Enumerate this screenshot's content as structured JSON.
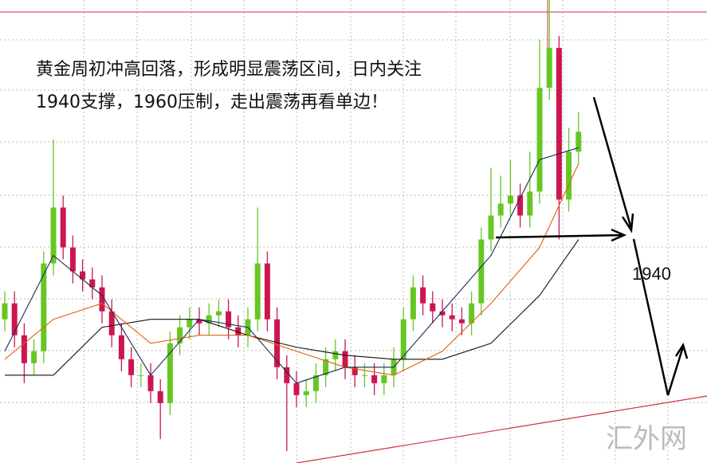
{
  "chart_data": {
    "type": "candlestick",
    "annotation_lines": [
      "黄金周初冲高回落，形成明显震荡区间，日内关注",
      "1940支撑，1960压制，走出震荡再看单边！"
    ],
    "level_label": "1940",
    "watermark": "汇外网",
    "ylim": [
      1884,
      2000
    ],
    "hline": 1997,
    "up_color": "#66c724",
    "down_color": "#cc1650",
    "open": [
      1920,
      1924,
      1916,
      1909,
      1912,
      1934,
      1948,
      1938,
      1932,
      1930,
      1928,
      1922,
      1916,
      1910,
      1906,
      1906,
      1902,
      1899,
      1914,
      1918,
      1920,
      1919,
      1921,
      1922,
      1918,
      1916,
      1920,
      1934,
      1920,
      1908,
      1904,
      1901,
      1902,
      1906,
      1910,
      1912,
      1908,
      1906,
      1906,
      1904,
      1906,
      1910,
      1920,
      1928,
      1924,
      1922,
      1921,
      1920,
      1919,
      1924,
      1940,
      1946,
      1949,
      1951,
      1946,
      1952,
      1978,
      1988,
      1950,
      1962
    ],
    "high": [
      1927,
      1927,
      1919,
      1915,
      1937,
      1965,
      1951,
      1941,
      1935,
      1933,
      1931,
      1925,
      1919,
      1913,
      1909,
      1909,
      1905,
      1917,
      1921,
      1923,
      1923,
      1924,
      1925,
      1925,
      1921,
      1923,
      1948,
      1937,
      1923,
      1911,
      1907,
      1905,
      1909,
      1913,
      1915,
      1915,
      1911,
      1909,
      1909,
      1909,
      1913,
      1923,
      1931,
      1931,
      1927,
      1925,
      1924,
      1923,
      1927,
      1943,
      1958,
      1956,
      1960,
      1954,
      1962,
      1990,
      2000,
      1991,
      1968,
      1972
    ],
    "low": [
      1917,
      1913,
      1904,
      1906,
      1909,
      1931,
      1935,
      1929,
      1927,
      1925,
      1919,
      1913,
      1907,
      1903,
      1903,
      1899,
      1890,
      1896,
      1911,
      1915,
      1916,
      1916,
      1918,
      1915,
      1913,
      1913,
      1917,
      1917,
      1905,
      1887,
      1898,
      1898,
      1899,
      1903,
      1907,
      1905,
      1903,
      1903,
      1901,
      1901,
      1903,
      1907,
      1917,
      1921,
      1919,
      1918,
      1917,
      1916,
      1916,
      1921,
      1937,
      1943,
      1946,
      1943,
      1943,
      1949,
      1975,
      1940,
      1947,
      1959
    ],
    "close": [
      1924,
      1916,
      1909,
      1912,
      1934,
      1948,
      1938,
      1932,
      1930,
      1928,
      1922,
      1916,
      1910,
      1906,
      1906,
      1902,
      1899,
      1914,
      1918,
      1920,
      1919,
      1921,
      1922,
      1918,
      1916,
      1920,
      1934,
      1920,
      1908,
      1904,
      1901,
      1902,
      1906,
      1910,
      1912,
      1908,
      1906,
      1906,
      1904,
      1906,
      1910,
      1920,
      1928,
      1924,
      1922,
      1921,
      1920,
      1919,
      1924,
      1940,
      1946,
      1949,
      1951,
      1946,
      1952,
      1978,
      1988,
      1950,
      1962,
      1967
    ],
    "ma_index": [
      0,
      5,
      10,
      15,
      20,
      25,
      30,
      35,
      40,
      45,
      50,
      55,
      59
    ],
    "series": [
      {
        "color": "#111111",
        "values": [
          1906,
          1906,
          1918,
          1920,
          1920,
          1916,
          1913,
          1911,
          1910,
          1910,
          1914,
          1926,
          1940
        ]
      },
      {
        "color": "#e06010",
        "values": [
          1910,
          1920,
          1924,
          1914,
          1916,
          1916,
          1912,
          1908,
          1906,
          1912,
          1924,
          1938,
          1959
        ]
      },
      {
        "color": "#1a2a5a",
        "values": [
          1912,
          1936,
          1926,
          1906,
          1920,
          1918,
          1904,
          1908,
          1908,
          1922,
          1936,
          1960,
          1963
        ]
      }
    ]
  }
}
